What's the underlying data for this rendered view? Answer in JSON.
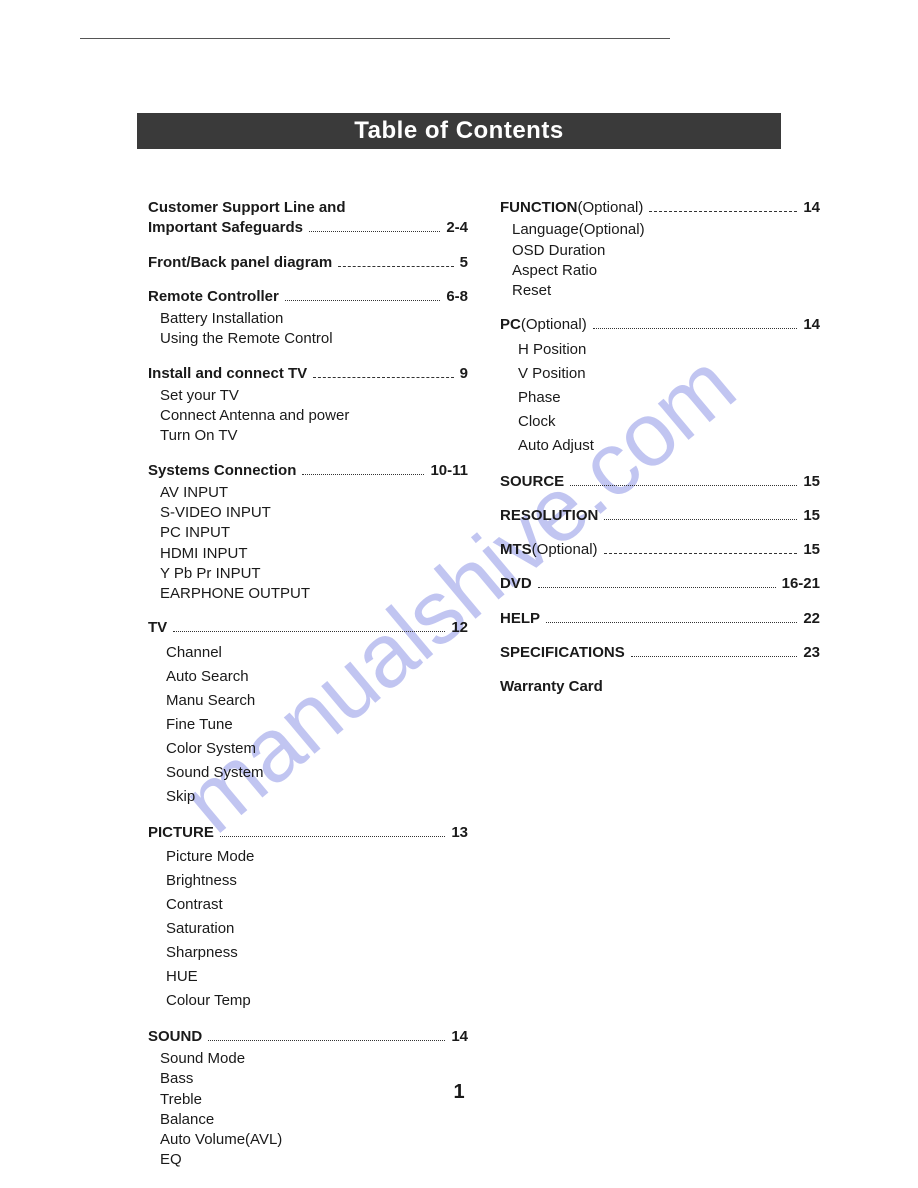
{
  "title": "Table of Contents",
  "watermark": "manualshive.com",
  "page_number": "1",
  "colors": {
    "title_bg": "#3a3a3a",
    "title_fg": "#ffffff",
    "text": "#1a1a1a",
    "watermark": "rgba(118,126,224,0.45)",
    "background": "#ffffff",
    "rule": "#555555"
  },
  "left_column": [
    {
      "title": "Customer Support Line and Important Safeguards",
      "page": "2-4",
      "multiline": true,
      "items": []
    },
    {
      "title": "Front/Back panel diagram",
      "page": "5",
      "dashed": true,
      "items": []
    },
    {
      "title": "Remote Controller",
      "page": "6-8",
      "items": [
        "Battery Installation",
        "Using the Remote Control"
      ]
    },
    {
      "title": "Install and connect  TV",
      "page": "9",
      "dashed": true,
      "items": [
        "Set your TV",
        "Connect Antenna and power",
        "Turn On  TV"
      ]
    },
    {
      "title": "Systems Connection",
      "page": "10-11",
      "items": [
        "AV INPUT",
        "S-VIDEO INPUT",
        "PC INPUT",
        "HDMI INPUT",
        "Y Pb Pr INPUT",
        "EARPHONE OUTPUT"
      ]
    },
    {
      "title": "TV",
      "page": "12",
      "wide": true,
      "items": [
        "Channel",
        "Auto Search",
        "Manu Search",
        "Fine Tune",
        "Color System",
        "Sound System",
        "Skip"
      ]
    },
    {
      "title": "PICTURE",
      "page": "13",
      "wide": true,
      "items": [
        "Picture Mode",
        "Brightness",
        "Contrast",
        "Saturation",
        "Sharpness",
        "HUE",
        "Colour Temp"
      ]
    },
    {
      "title": "SOUND",
      "page": "14",
      "items": [
        "Sound Mode",
        "Bass",
        "Treble",
        "Balance",
        "Auto Volume(AVL)",
        "EQ"
      ]
    }
  ],
  "right_column": [
    {
      "title": "FUNCTION",
      "optional": "(Optional)",
      "page": "14",
      "dashed": true,
      "items": [
        "Language(Optional)",
        "OSD Duration",
        "Aspect Ratio",
        "Reset"
      ]
    },
    {
      "title": "PC",
      "optional": "(Optional)",
      "page": "14",
      "wide": true,
      "items": [
        "H Position",
        "V Position",
        "Phase",
        "Clock",
        "Auto Adjust"
      ]
    },
    {
      "title": "SOURCE",
      "page": "15",
      "items": []
    },
    {
      "title": "RESOLUTION",
      "page": "15",
      "items": []
    },
    {
      "title": "MTS",
      "optional": "(Optional)",
      "page": "15",
      "dashed": true,
      "items": []
    },
    {
      "title": "DVD",
      "page": "16-21",
      "items": []
    },
    {
      "title": "HELP",
      "page": "22",
      "items": []
    },
    {
      "title": "SPECIFICATIONS",
      "page": "23",
      "items": []
    },
    {
      "title": "Warranty Card",
      "page": "",
      "items": []
    }
  ]
}
